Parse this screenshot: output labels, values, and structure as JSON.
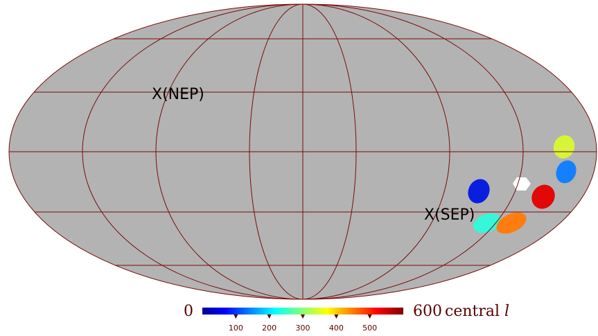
{
  "map": {
    "projection": "mollweide",
    "background_color": "#b3b3b3",
    "graticule_color": "#7a0a0a",
    "labels": [
      {
        "text": "X(NEP)"
      },
      {
        "text": "X(SEP)"
      }
    ],
    "patches": [
      {
        "name": "patch-yellow-green",
        "color": "#d6f53a",
        "value": 400
      },
      {
        "name": "patch-light-blue",
        "color": "#1580ff",
        "value": 200
      },
      {
        "name": "patch-white",
        "color": "#ffffff"
      },
      {
        "name": "patch-red",
        "color": "#e20808",
        "value": 550
      },
      {
        "name": "patch-blue",
        "color": "#0a1ee0",
        "value": 100
      },
      {
        "name": "patch-cyan",
        "color": "#36f7d8",
        "value": 300
      },
      {
        "name": "patch-orange",
        "color": "#ff7d10",
        "value": 480
      }
    ]
  },
  "colorbar": {
    "min_label": "0",
    "max_label": "600",
    "title_text": "central ",
    "title_var": "l",
    "ticks": [
      "100",
      "200",
      "300",
      "400",
      "500"
    ],
    "tick_values": [
      100,
      200,
      300,
      400,
      500
    ],
    "range": [
      0,
      600
    ],
    "colormap": [
      "#00008f",
      "#0000ff",
      "#00ffff",
      "#ffff00",
      "#ff0000",
      "#800000"
    ]
  }
}
